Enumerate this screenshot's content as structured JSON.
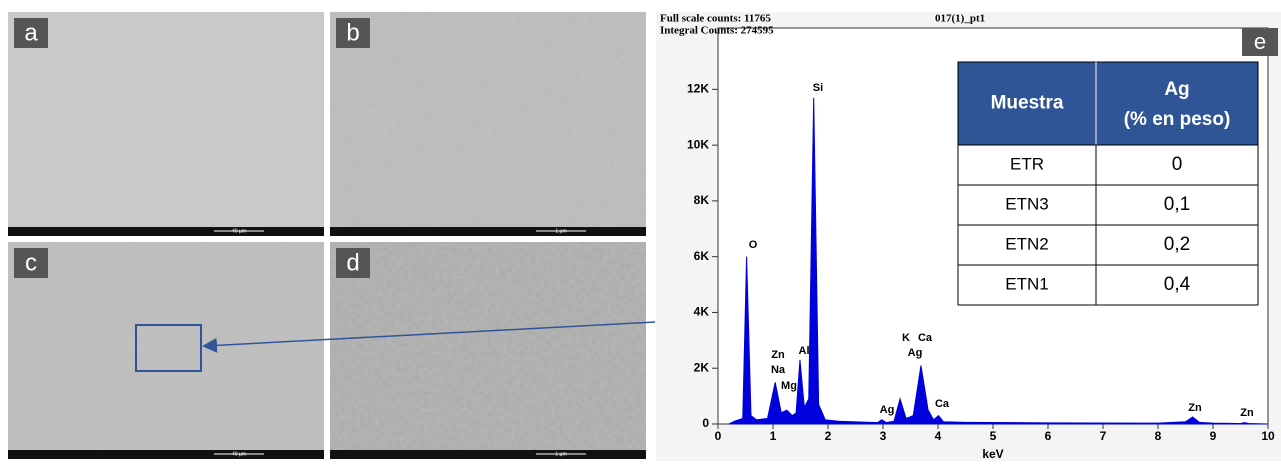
{
  "panels": [
    {
      "label": "a",
      "scale": "40 µm"
    },
    {
      "label": "b",
      "scale": "1 µm"
    },
    {
      "label": "c",
      "scale": "40 µm"
    },
    {
      "label": "d",
      "scale": "1 µm"
    }
  ],
  "chart_data": {
    "type": "area",
    "panel_label": "e",
    "header": [
      "Full scale counts: 11765",
      "Integral Counts: 274595"
    ],
    "title": "017(1)_pt1",
    "x_label": "keV",
    "color": "#0000dd",
    "x": [
      0.2,
      0.3,
      0.45,
      0.52,
      0.6,
      0.7,
      0.9,
      1.04,
      1.15,
      1.25,
      1.35,
      1.42,
      1.49,
      1.57,
      1.65,
      1.74,
      1.83,
      1.95,
      2.2,
      2.9,
      2.98,
      3.06,
      3.2,
      3.31,
      3.42,
      3.55,
      3.69,
      3.82,
      3.92,
      4.01,
      4.1,
      4.5,
      6,
      8.0,
      8.5,
      8.63,
      8.75,
      9.0,
      9.5,
      9.57,
      9.65,
      10
    ],
    "values": [
      0,
      100,
      200,
      6000,
      300,
      150,
      200,
      1500,
      400,
      500,
      300,
      400,
      2300,
      600,
      900,
      11700,
      700,
      150,
      100,
      50,
      150,
      50,
      100,
      900,
      200,
      300,
      2100,
      500,
      150,
      300,
      80,
      60,
      40,
      30,
      80,
      250,
      60,
      30,
      20,
      50,
      20,
      0
    ],
    "xlim": [
      0,
      10
    ],
    "ylim": [
      0,
      14200
    ],
    "xticks": [
      0,
      1,
      2,
      3,
      4,
      5,
      6,
      7,
      8,
      9,
      10
    ],
    "yticks": [
      0,
      {
        "value": 2000,
        "label": "2K"
      },
      {
        "value": 4000,
        "label": "4K"
      },
      {
        "value": 6000,
        "label": "6K"
      },
      {
        "value": 8000,
        "label": "8K"
      },
      {
        "value": 10000,
        "label": "10K"
      },
      {
        "value": 12000,
        "label": "12K"
      }
    ],
    "annotations": [
      "Si",
      "O",
      "Zn",
      "Na",
      "Mg",
      "Al",
      "K",
      "Ca",
      "Ag",
      "Ag",
      "Ca",
      "Zn",
      "Zn"
    ]
  },
  "table": {
    "header": [
      "Muestra",
      [
        "Ag",
        "(% en peso)"
      ]
    ],
    "rows": [
      [
        "ETR",
        "0"
      ],
      [
        "ETN3",
        "0,1"
      ],
      [
        "ETN2",
        "0,2"
      ],
      [
        "ETN1",
        "0,4"
      ]
    ]
  }
}
